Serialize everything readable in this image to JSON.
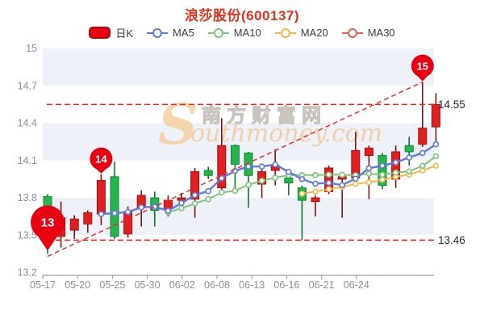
{
  "title": "浪莎股份(600137)",
  "legend": [
    {
      "label": "日K",
      "color": "#e60012",
      "type": "candle"
    },
    {
      "label": "MA5",
      "color": "#5f7ad9",
      "type": "line"
    },
    {
      "label": "MA10",
      "color": "#7cc57c",
      "type": "line"
    },
    {
      "label": "MA20",
      "color": "#f4b64c",
      "type": "line"
    },
    {
      "label": "MA30",
      "color": "#e85b52",
      "type": "line"
    }
  ],
  "watermark": {
    "initial": "S",
    "cn": "南方财富网",
    "en": "outhmoney.com"
  },
  "colors": {
    "title": "#e8301a",
    "up_fill": "#e02020",
    "up_border": "#a80f0f",
    "up_wick": "#7e1414",
    "down_fill": "#28b24b",
    "down_border": "#0c8a34",
    "down_wick": "#0a7a30",
    "ma5": "#5f7ad9",
    "ma10": "#7cc57c",
    "ma20": "#f4b64c",
    "ma30": "#e85b52",
    "ref_line": "#ee2222",
    "band": "#eef1f8",
    "axis": "#9aa0a8",
    "axis_text": "#8a8f98",
    "value_text": "#2b2b2b",
    "marker_fill": "#e60012",
    "marker_text": "#ffffff"
  },
  "chart_data": {
    "type": "candlestick",
    "title": "浪莎股份(600137)",
    "ylim": [
      13.2,
      15.0
    ],
    "y_ticks": [
      "15",
      "14.7",
      "14.4",
      "14.1",
      "13.8",
      "13.5",
      "13.2"
    ],
    "x_ticks": [
      "05-17",
      "05-20",
      "05-25",
      "05-30",
      "06-02",
      "06-08",
      "06-13",
      "06-16",
      "06-21",
      "06-24"
    ],
    "candles_ohlc": [
      [
        13.81,
        13.83,
        13.35,
        13.46
      ],
      [
        13.49,
        13.77,
        13.4,
        13.64
      ],
      [
        13.54,
        13.66,
        13.47,
        13.63
      ],
      [
        13.59,
        13.7,
        13.52,
        13.68
      ],
      [
        13.67,
        13.99,
        13.58,
        13.94
      ],
      [
        13.97,
        14.09,
        13.47,
        13.49
      ],
      [
        13.51,
        13.73,
        13.48,
        13.69
      ],
      [
        13.72,
        13.86,
        13.57,
        13.82
      ],
      [
        13.8,
        13.85,
        13.57,
        13.7
      ],
      [
        13.71,
        13.82,
        13.65,
        13.78
      ],
      [
        13.78,
        13.84,
        13.7,
        13.8
      ],
      [
        13.79,
        14.04,
        13.64,
        14.01
      ],
      [
        14.02,
        14.05,
        13.95,
        13.98
      ],
      [
        13.88,
        14.44,
        13.85,
        14.22
      ],
      [
        14.22,
        14.23,
        13.88,
        14.07
      ],
      [
        14.16,
        14.17,
        13.72,
        13.98
      ],
      [
        13.91,
        14.06,
        13.8,
        14.01
      ],
      [
        14.02,
        14.19,
        13.9,
        14.06
      ],
      [
        13.96,
        13.98,
        13.82,
        13.92
      ],
      [
        13.88,
        13.9,
        13.46,
        13.78
      ],
      [
        13.77,
        13.82,
        13.65,
        13.8
      ],
      [
        13.85,
        14.06,
        13.83,
        14.04
      ],
      [
        13.95,
        14.0,
        13.64,
        13.97
      ],
      [
        13.96,
        14.33,
        13.9,
        14.18
      ],
      [
        14.14,
        14.22,
        13.79,
        14.2
      ],
      [
        14.14,
        14.16,
        13.87,
        13.9
      ],
      [
        13.95,
        14.22,
        13.88,
        14.17
      ],
      [
        14.22,
        14.29,
        14.06,
        14.17
      ],
      [
        14.23,
        14.73,
        14.21,
        14.36
      ],
      [
        14.37,
        14.64,
        14.24,
        14.55
      ]
    ],
    "ma_series": [
      {
        "name": "MA5",
        "period": 5,
        "color": "#5f7ad9"
      },
      {
        "name": "MA10",
        "period": 10,
        "color": "#7cc57c"
      },
      {
        "name": "MA20",
        "period": 20,
        "color": "#f4b64c"
      }
    ],
    "ref_lines": {
      "upper": {
        "value": 14.55,
        "label": "14.55"
      },
      "lower": {
        "value": 13.46,
        "label": "13.46"
      }
    },
    "trend_line": {
      "from_candle": 0,
      "from_value": 13.33,
      "to_candle": 28,
      "to_value": 14.73
    },
    "markers": [
      {
        "label": "13",
        "candle": 0,
        "at": "low",
        "r": 21,
        "tail": 16
      },
      {
        "label": "14",
        "candle": 4,
        "at": "high",
        "r": 14,
        "tail": 6
      },
      {
        "label": "15",
        "candle": 28,
        "at": "high",
        "r": 14,
        "tail": 7
      }
    ],
    "legend_entries": [
      "日K",
      "MA5",
      "MA10",
      "MA20",
      "MA30"
    ],
    "grid": "alternating-bands",
    "legend_position": "top-center"
  }
}
